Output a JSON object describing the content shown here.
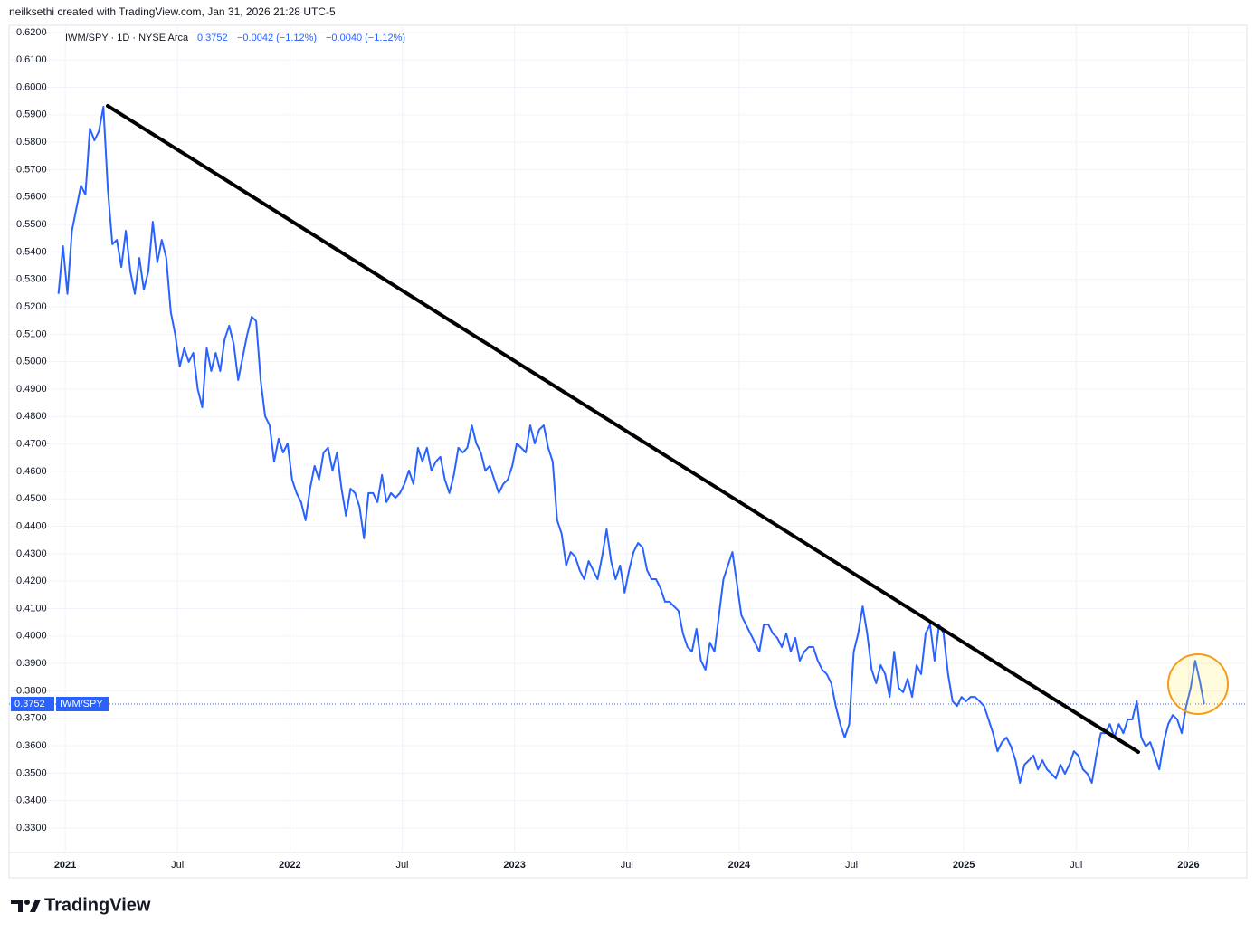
{
  "header": "neilksethi created with TradingView.com, Jan 31, 2026 21:28 UTC-5",
  "brand": "TradingView",
  "chart_data": {
    "type": "line",
    "legend": {
      "symbol": "IWM/SPY · 1D · NYSE Arca",
      "change": "−0.0042 (−1.12%)",
      "change_alt": "−0.0040 (−1.12%)"
    },
    "last_value": 0.3752,
    "xlim": [
      2020.75,
      2026.26
    ],
    "xticks": [
      2021,
      {
        "value": 2021.5,
        "label": "Jul"
      },
      2022,
      {
        "value": 2022.5,
        "label": "Jul"
      },
      2023,
      {
        "value": 2023.5,
        "label": "Jul"
      },
      2024,
      {
        "value": 2024.5,
        "label": "Jul"
      },
      2025,
      {
        "value": 2025.5,
        "label": "Jul"
      },
      2026
    ],
    "ylim": [
      0.3211,
      0.6226
    ],
    "yticks": [
      {
        "value": 0.33,
        "label": "0.3300"
      },
      {
        "value": 0.34,
        "label": "0.3400"
      },
      {
        "value": 0.35,
        "label": "0.3500"
      },
      {
        "value": 0.36,
        "label": "0.3600"
      },
      {
        "value": 0.37,
        "label": "0.3700"
      },
      {
        "value": 0.38,
        "label": "0.3800"
      },
      {
        "value": 0.39,
        "label": "0.3900"
      },
      {
        "value": 0.4,
        "label": "0.4000"
      },
      {
        "value": 0.41,
        "label": "0.4100"
      },
      {
        "value": 0.42,
        "label": "0.4200"
      },
      {
        "value": 0.43,
        "label": "0.4300"
      },
      {
        "value": 0.44,
        "label": "0.4400"
      },
      {
        "value": 0.45,
        "label": "0.4500"
      },
      {
        "value": 0.46,
        "label": "0.4600"
      },
      {
        "value": 0.47,
        "label": "0.4700"
      },
      {
        "value": 0.48,
        "label": "0.4800"
      },
      {
        "value": 0.49,
        "label": "0.4900"
      },
      {
        "value": 0.5,
        "label": "0.5000"
      },
      {
        "value": 0.51,
        "label": "0.5100"
      },
      {
        "value": 0.52,
        "label": "0.5200"
      },
      {
        "value": 0.53,
        "label": "0.5300"
      },
      {
        "value": 0.54,
        "label": "0.5400"
      },
      {
        "value": 0.55,
        "label": "0.5500"
      },
      {
        "value": 0.56,
        "label": "0.5600"
      },
      {
        "value": 0.57,
        "label": "0.5700"
      },
      {
        "value": 0.58,
        "label": "0.5800"
      },
      {
        "value": 0.59,
        "label": "0.5900"
      },
      {
        "value": 0.6,
        "label": "0.6000"
      },
      {
        "value": 0.61,
        "label": "0.6100"
      },
      {
        "value": 0.62,
        "label": "0.6200"
      }
    ],
    "grid": true,
    "x": [
      2020.97,
      2020.99,
      2021.01,
      2021.03,
      2021.05,
      2021.07,
      2021.09,
      2021.11,
      2021.13,
      2021.15,
      2021.17,
      2021.19,
      2021.21,
      2021.23,
      2021.25,
      2021.27,
      2021.29,
      2021.31,
      2021.33,
      2021.35,
      2021.37,
      2021.39,
      2021.41,
      2021.43,
      2021.45,
      2021.47,
      2021.49,
      2021.51,
      2021.53,
      2021.55,
      2021.57,
      2021.59,
      2021.61,
      2021.63,
      2021.65,
      2021.67,
      2021.69,
      2021.71,
      2021.73,
      2021.75,
      2021.77,
      2021.79,
      2021.81,
      2021.83,
      2021.85,
      2021.87,
      2021.89,
      2021.91,
      2021.93,
      2021.95,
      2021.97,
      2021.99,
      2022.01,
      2022.03,
      2022.05,
      2022.07,
      2022.09,
      2022.11,
      2022.13,
      2022.15,
      2022.17,
      2022.19,
      2022.21,
      2022.23,
      2022.25,
      2022.27,
      2022.29,
      2022.31,
      2022.33,
      2022.35,
      2022.37,
      2022.39,
      2022.41,
      2022.43,
      2022.45,
      2022.47,
      2022.49,
      2022.51,
      2022.53,
      2022.55,
      2022.57,
      2022.59,
      2022.61,
      2022.63,
      2022.65,
      2022.67,
      2022.69,
      2022.71,
      2022.73,
      2022.75,
      2022.77,
      2022.79,
      2022.81,
      2022.83,
      2022.85,
      2022.87,
      2022.89,
      2022.91,
      2022.93,
      2022.95,
      2022.97,
      2022.99,
      2023.01,
      2023.03,
      2023.05,
      2023.07,
      2023.09,
      2023.11,
      2023.13,
      2023.15,
      2023.17,
      2023.19,
      2023.21,
      2023.23,
      2023.25,
      2023.27,
      2023.29,
      2023.31,
      2023.33,
      2023.35,
      2023.37,
      2023.39,
      2023.41,
      2023.43,
      2023.45,
      2023.47,
      2023.49,
      2023.51,
      2023.53,
      2023.55,
      2023.57,
      2023.59,
      2023.61,
      2023.63,
      2023.65,
      2023.67,
      2023.69,
      2023.71,
      2023.73,
      2023.75,
      2023.77,
      2023.79,
      2023.81,
      2023.83,
      2023.85,
      2023.87,
      2023.89,
      2023.91,
      2023.93,
      2023.95,
      2023.97,
      2023.99,
      2024.01,
      2024.03,
      2024.05,
      2024.07,
      2024.09,
      2024.11,
      2024.13,
      2024.15,
      2024.17,
      2024.19,
      2024.21,
      2024.23,
      2024.25,
      2024.27,
      2024.29,
      2024.31,
      2024.33,
      2024.35,
      2024.37,
      2024.39,
      2024.41,
      2024.43,
      2024.45,
      2024.47,
      2024.49,
      2024.51,
      2024.53,
      2024.55,
      2024.57,
      2024.59,
      2024.61,
      2024.63,
      2024.65,
      2024.67,
      2024.69,
      2024.71,
      2024.73,
      2024.75,
      2024.77,
      2024.79,
      2024.81,
      2024.83,
      2024.85,
      2024.87,
      2024.89,
      2024.91,
      2024.93,
      2024.95,
      2024.97,
      2024.99,
      2025.01,
      2025.03,
      2025.05,
      2025.07,
      2025.09,
      2025.11,
      2025.13,
      2025.15,
      2025.17,
      2025.19,
      2025.21,
      2025.23,
      2025.25,
      2025.27,
      2025.29,
      2025.31,
      2025.33,
      2025.35,
      2025.37,
      2025.39,
      2025.41,
      2025.43,
      2025.45,
      2025.47,
      2025.49,
      2025.51,
      2025.53,
      2025.55,
      2025.57,
      2025.59,
      2025.61,
      2025.63,
      2025.65,
      2025.67,
      2025.69,
      2025.71,
      2025.73,
      2025.75,
      2025.77,
      2025.79,
      2025.81,
      2025.83,
      2025.85,
      2025.87,
      2025.89,
      2025.91,
      2025.93,
      2025.95,
      2025.97,
      2025.99,
      2026.01,
      2026.03,
      2026.05,
      2026.07
    ],
    "series": [
      {
        "name": "IWM/SPY",
        "color": "#2962ff",
        "values": [
          0.5247,
          0.5421,
          0.5247,
          0.5477,
          0.556,
          0.5642,
          0.5609,
          0.585,
          0.5807,
          0.584,
          0.5929,
          0.5626,
          0.5428,
          0.5444,
          0.5345,
          0.5477,
          0.5329,
          0.5247,
          0.5378,
          0.5263,
          0.5329,
          0.551,
          0.5362,
          0.5444,
          0.5378,
          0.5181,
          0.5098,
          0.4983,
          0.5049,
          0.4999,
          0.5032,
          0.49,
          0.4834,
          0.5049,
          0.4966,
          0.5032,
          0.4966,
          0.5082,
          0.5131,
          0.5065,
          0.4933,
          0.5016,
          0.5098,
          0.5164,
          0.5148,
          0.4933,
          0.4801,
          0.4768,
          0.4636,
          0.4719,
          0.4669,
          0.4702,
          0.457,
          0.4521,
          0.4488,
          0.4422,
          0.4537,
          0.462,
          0.457,
          0.4669,
          0.4686,
          0.4603,
          0.4669,
          0.4537,
          0.4438,
          0.4537,
          0.4521,
          0.4471,
          0.4356,
          0.4521,
          0.4521,
          0.4488,
          0.4587,
          0.4488,
          0.4521,
          0.4504,
          0.4521,
          0.4554,
          0.4603,
          0.4554,
          0.4686,
          0.4636,
          0.4686,
          0.4603,
          0.4636,
          0.4653,
          0.457,
          0.4521,
          0.4587,
          0.4686,
          0.4669,
          0.4686,
          0.4768,
          0.4702,
          0.4669,
          0.4603,
          0.462,
          0.457,
          0.4521,
          0.4554,
          0.457,
          0.462,
          0.4702,
          0.4686,
          0.4669,
          0.4768,
          0.4702,
          0.4752,
          0.4768,
          0.4686,
          0.4636,
          0.4422,
          0.4372,
          0.4257,
          0.4306,
          0.429,
          0.424,
          0.4207,
          0.4273,
          0.424,
          0.4207,
          0.429,
          0.4389,
          0.4273,
          0.4207,
          0.4257,
          0.4158,
          0.424,
          0.4306,
          0.4339,
          0.4323,
          0.424,
          0.4207,
          0.4207,
          0.4174,
          0.4125,
          0.4125,
          0.4108,
          0.4092,
          0.4009,
          0.396,
          0.3943,
          0.4026,
          0.391,
          0.3877,
          0.3976,
          0.3943,
          0.4075,
          0.4207,
          0.4257,
          0.4306,
          0.4191,
          0.4075,
          0.4042,
          0.4009,
          0.3976,
          0.3943,
          0.4042,
          0.4042,
          0.4009,
          0.3993,
          0.396,
          0.4009,
          0.3943,
          0.3993,
          0.391,
          0.3943,
          0.396,
          0.396,
          0.391,
          0.3877,
          0.3861,
          0.3828,
          0.3745,
          0.3679,
          0.363,
          0.3679,
          0.3943,
          0.4009,
          0.4108,
          0.4009,
          0.3877,
          0.3828,
          0.3894,
          0.3861,
          0.3778,
          0.3943,
          0.3811,
          0.3795,
          0.3844,
          0.3778,
          0.3894,
          0.3861,
          0.4009,
          0.4042,
          0.391,
          0.4042,
          0.4009,
          0.3861,
          0.3762,
          0.3745,
          0.3778,
          0.3762,
          0.3778,
          0.3778,
          0.3762,
          0.3745,
          0.3696,
          0.3646,
          0.358,
          0.3613,
          0.363,
          0.3597,
          0.3547,
          0.3465,
          0.3531,
          0.3547,
          0.3564,
          0.3514,
          0.3547,
          0.3514,
          0.3498,
          0.3481,
          0.3531,
          0.3498,
          0.3531,
          0.358,
          0.3564,
          0.3514,
          0.3498,
          0.3465,
          0.3564,
          0.3646,
          0.3646,
          0.3679,
          0.363,
          0.3679,
          0.3646,
          0.3696,
          0.3696,
          0.3762,
          0.363,
          0.3597,
          0.3613,
          0.3564,
          0.3514,
          0.3613,
          0.3679,
          0.3712,
          0.3696,
          0.3646,
          0.3745,
          0.3811,
          0.391,
          0.3838,
          0.3752
        ]
      }
    ]
  }
}
